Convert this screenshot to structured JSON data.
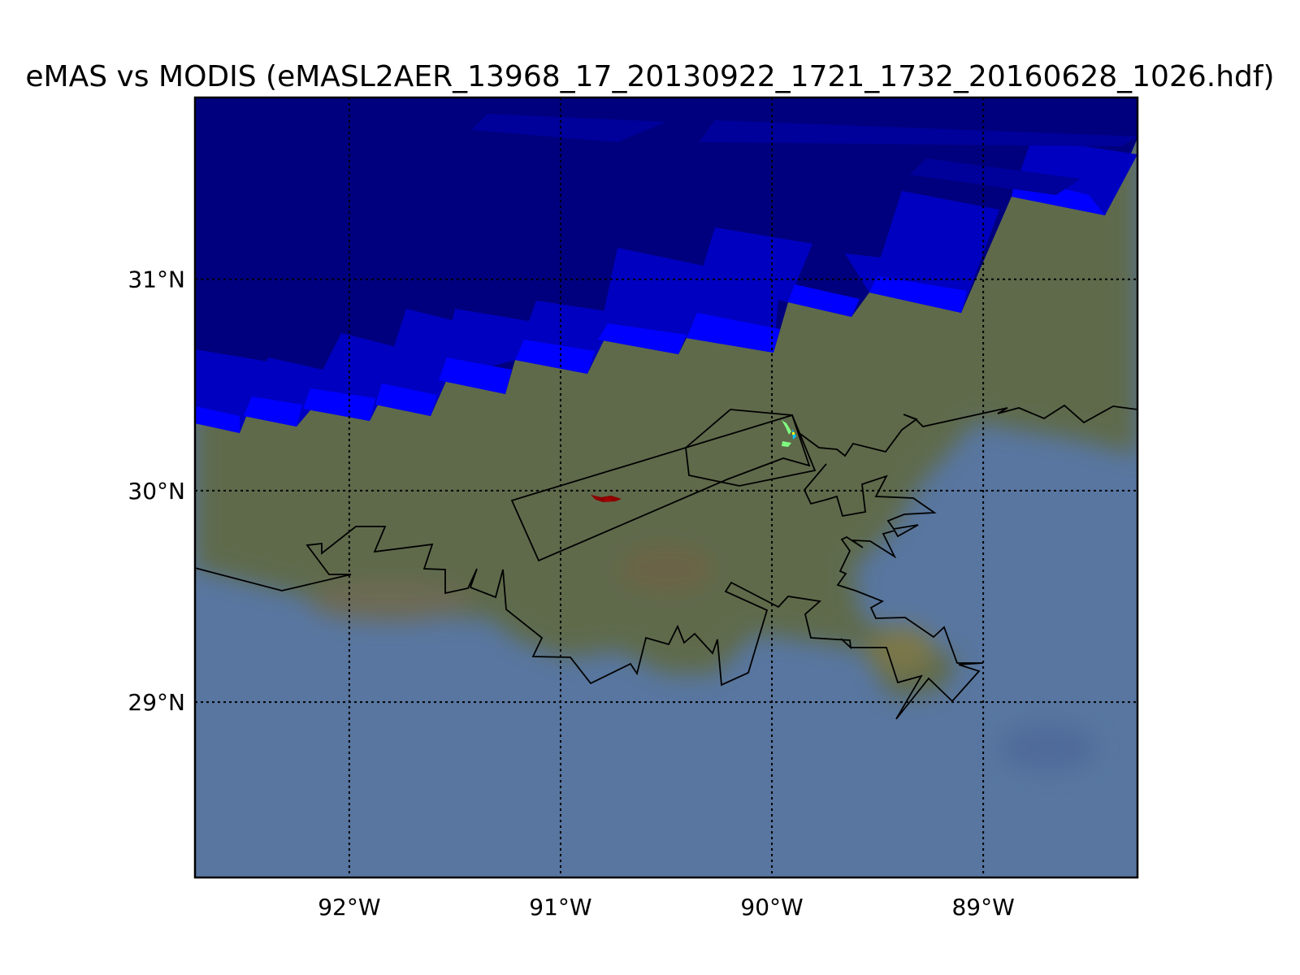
{
  "title": "eMAS vs MODIS (eMASL2AER_13968_17_20130922_1721_1732_20160628_1026.hdf)",
  "map": {
    "lon_range": [
      -92.73,
      -88.27
    ],
    "lat_range": [
      28.17,
      31.86
    ],
    "parallels": [
      {
        "value": 29,
        "label": "29°N"
      },
      {
        "value": 30,
        "label": "30°N"
      },
      {
        "value": 31,
        "label": "31°N"
      }
    ],
    "meridians": [
      {
        "value": -92,
        "label": "92°W"
      },
      {
        "value": -91,
        "label": "91°W"
      },
      {
        "value": -90,
        "label": "90°W"
      },
      {
        "value": -89,
        "label": "89°W"
      }
    ],
    "grid": true,
    "colors": {
      "water": "#5876a0",
      "land": "#5e6b4b",
      "swath_dark": "#00007f",
      "swath_mid": "#0000c8",
      "swath_bright": "#0000ff",
      "emas_low": "#7fff7f",
      "emas_high": "#8b0000"
    }
  }
}
